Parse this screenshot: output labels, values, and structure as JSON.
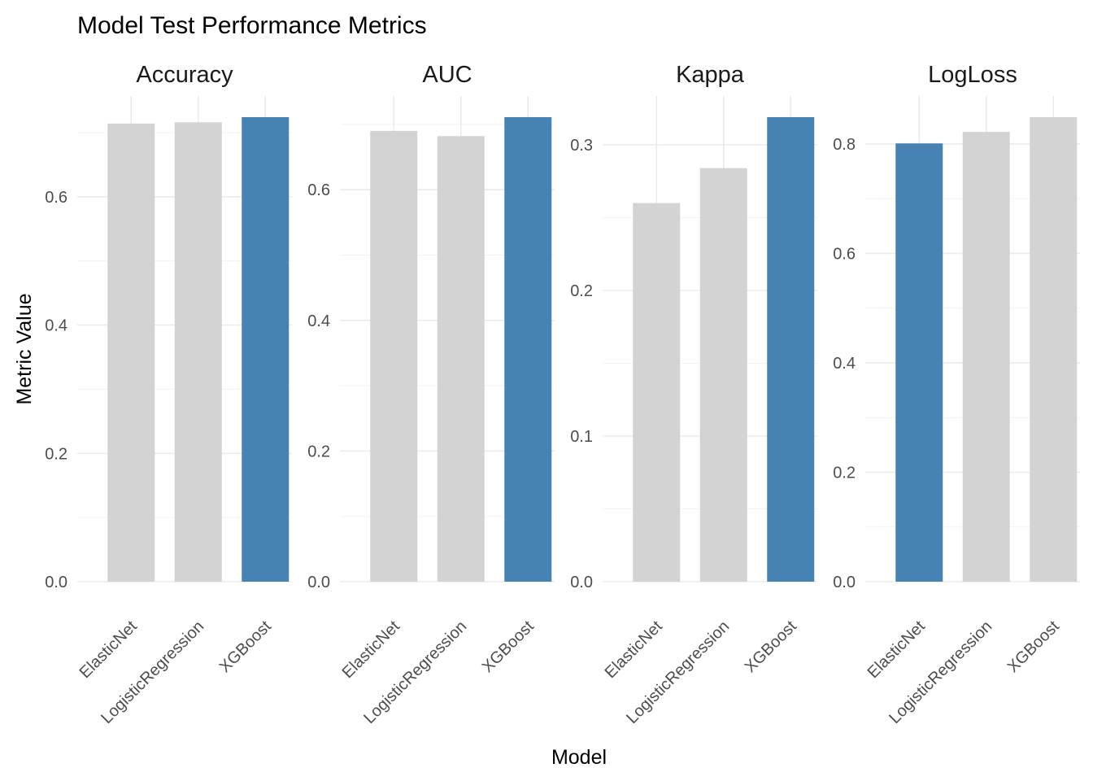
{
  "chart_data": {
    "type": "bar",
    "title": "Model Test Performance Metrics",
    "xlabel": "Model",
    "ylabel": "Metric Value",
    "grid": true,
    "legend": "none",
    "categories": [
      "ElasticNet",
      "LogisticRegression",
      "XGBoost"
    ],
    "colors": {
      "default": "#d3d3d3",
      "highlight": "#4682b4"
    },
    "panels": [
      {
        "name": "Accuracy",
        "values": [
          0.714,
          0.716,
          0.724
        ],
        "highlight": "XGBoost",
        "ylim": [
          0,
          0.724
        ],
        "yticks": [
          0.0,
          0.2,
          0.4,
          0.6
        ],
        "ytick_labels": [
          "0.0",
          "0.2",
          "0.4",
          "0.6"
        ]
      },
      {
        "name": "AUC",
        "values": [
          0.69,
          0.682,
          0.711
        ],
        "highlight": "XGBoost",
        "ylim": [
          0,
          0.711
        ],
        "yticks": [
          0.0,
          0.2,
          0.4,
          0.6
        ],
        "ytick_labels": [
          "0.0",
          "0.2",
          "0.4",
          "0.6"
        ]
      },
      {
        "name": "Kappa",
        "values": [
          0.26,
          0.284,
          0.319
        ],
        "highlight": "XGBoost",
        "ylim": [
          0,
          0.319
        ],
        "yticks": [
          0.0,
          0.1,
          0.2,
          0.3
        ],
        "ytick_labels": [
          "0.0",
          "0.1",
          "0.2",
          "0.3"
        ]
      },
      {
        "name": "LogLoss",
        "values": [
          0.801,
          0.822,
          0.849
        ],
        "highlight": "ElasticNet",
        "ylim": [
          0,
          0.849
        ],
        "yticks": [
          0.0,
          0.2,
          0.4,
          0.6,
          0.8
        ],
        "ytick_labels": [
          "0.0",
          "0.2",
          "0.4",
          "0.6",
          "0.8"
        ]
      }
    ]
  }
}
